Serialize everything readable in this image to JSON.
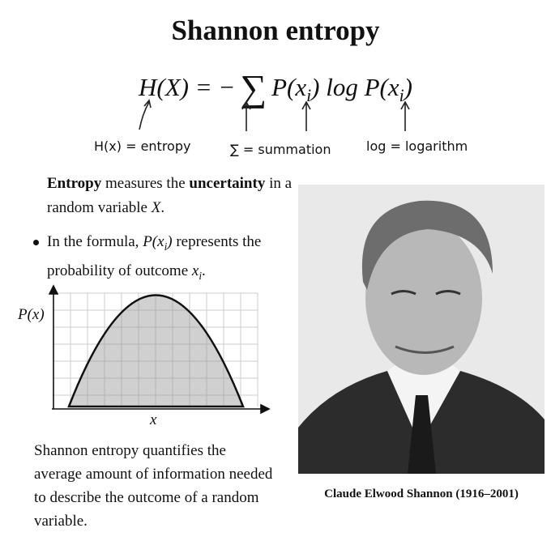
{
  "title": "Shannon entropy",
  "formula": [
    "H(X) = −",
    "∑",
    "P(x",
    "i",
    ") log P(x",
    "i",
    ")"
  ],
  "annotations": [
    "H(x) = entropy",
    "∑ = summation",
    "log = logarithm"
  ],
  "intro": [
    "Entropy",
    " measures the ",
    "uncertainty",
    " in a random variable ",
    "X",
    "."
  ],
  "bullet": [
    "In the formula, ",
    "P(x",
    "i",
    ")",
    " represents the probability of outcome ",
    "x",
    "i",
    "."
  ],
  "graph": {
    "y_label": "P(x)",
    "x_label": "x"
  },
  "summary": "Shannon entropy quantifies the average amount of information needed to describe the outcome of a random variable.",
  "photo_caption": "Claude Elwood Shannon (1916–2001)"
}
